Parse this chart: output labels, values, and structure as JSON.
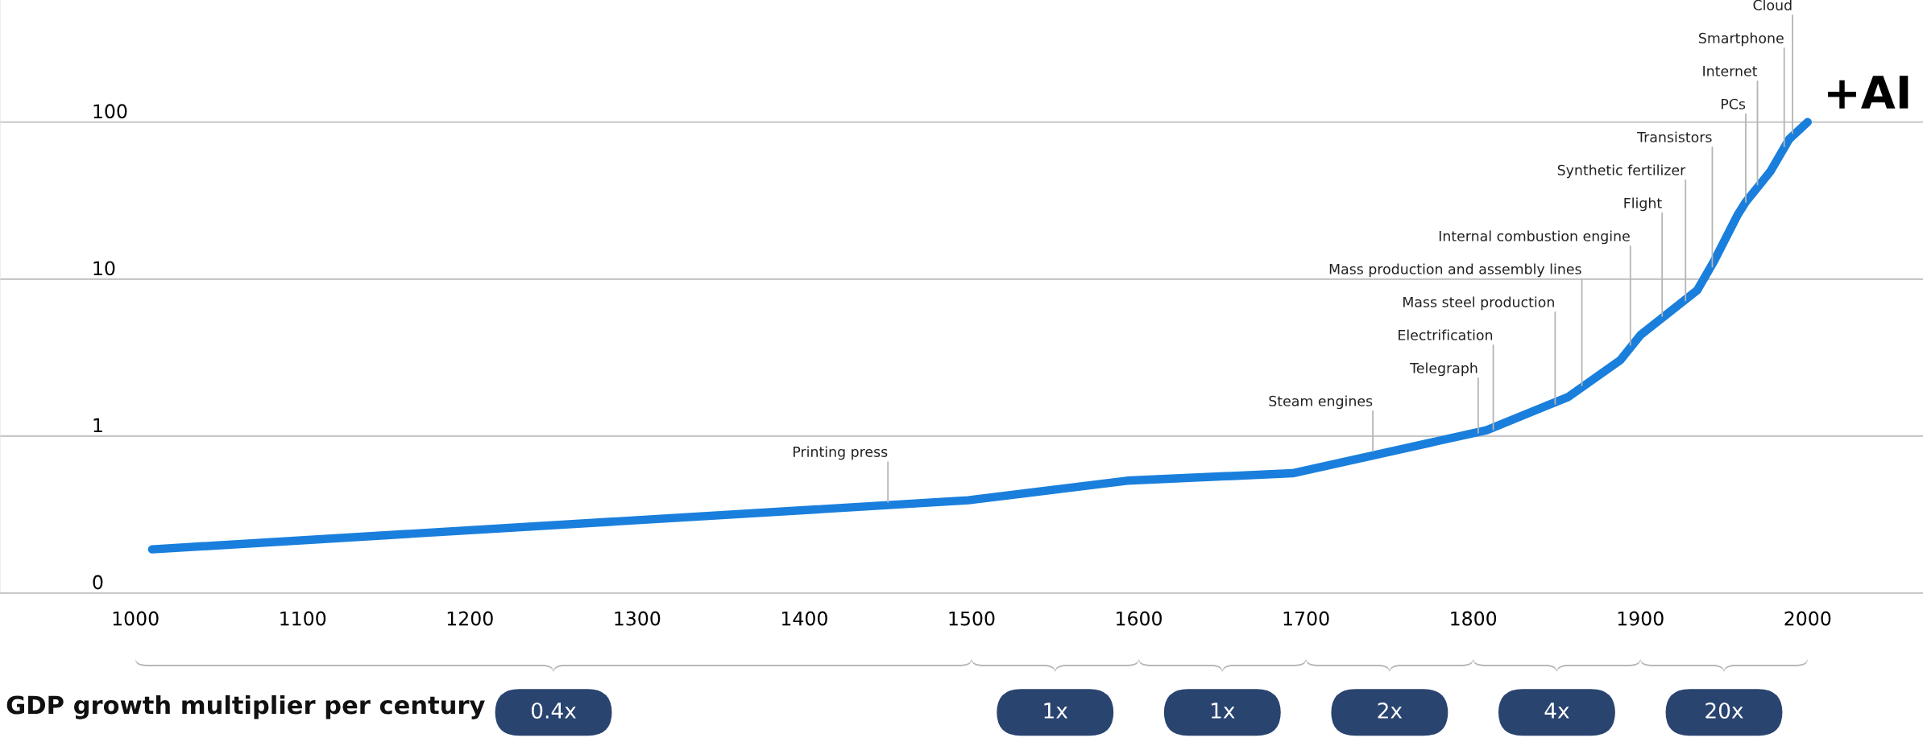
{
  "chart_data": {
    "type": "line",
    "log": true,
    "grid": "y",
    "xlim": [
      919,
      2069
    ],
    "xticks": [
      1000,
      1100,
      1200,
      1300,
      1400,
      1500,
      1600,
      1700,
      1800,
      1900,
      2000
    ],
    "ylim": [
      0.1,
      600
    ],
    "yticks": [
      {
        "value": 0.1,
        "label": "0"
      },
      1,
      10,
      100
    ],
    "series": [
      {
        "name": "+AI",
        "color": "#1a7fdc",
        "x": [
          1010,
          1498,
          1593,
          1692,
          1808,
          1857,
          1888,
          1900,
          1934,
          1944,
          1958,
          1963,
          1973,
          1978,
          1989,
          2000
        ],
        "values": [
          0.19,
          0.39,
          0.52,
          0.58,
          1.09,
          1.78,
          3.05,
          4.4,
          8.5,
          13,
          25.5,
          31,
          42,
          49,
          78,
          100
        ]
      }
    ],
    "annotations": [
      {
        "text": "Printing press",
        "x": 1450,
        "y": 0.38
      },
      {
        "text": "Steam engines",
        "x": 1740,
        "y": 0.8
      },
      {
        "text": "Telegraph",
        "x": 1803,
        "y": 1.05
      },
      {
        "text": "Electrification",
        "x": 1812,
        "y": 1.1
      },
      {
        "text": "Mass steel production",
        "x": 1849,
        "y": 1.6
      },
      {
        "text": "Mass production and assembly lines",
        "x": 1865,
        "y": 2.1
      },
      {
        "text": "Internal combustion engine",
        "x": 1894,
        "y": 3.8
      },
      {
        "text": "Flight",
        "x": 1913,
        "y": 5.8
      },
      {
        "text": "Synthetic fertilizer",
        "x": 1927,
        "y": 7.3
      },
      {
        "text": "Transistors",
        "x": 1943,
        "y": 12
      },
      {
        "text": "PCs",
        "x": 1963,
        "y": 31
      },
      {
        "text": "Internet",
        "x": 1970,
        "y": 40
      },
      {
        "text": "Smartphone",
        "x": 1986,
        "y": 70
      },
      {
        "text": "Cloud",
        "x": 1991,
        "y": 85
      },
      "GDP growth multiplier per century",
      "0.4x",
      "1x",
      "1x",
      "2x",
      "4x",
      "20x"
    ]
  }
}
